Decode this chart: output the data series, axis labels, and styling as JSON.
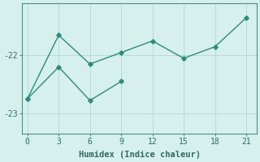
{
  "line1_x": [
    0,
    3,
    6,
    9,
    12,
    15,
    18,
    21
  ],
  "line1_y": [
    -22.75,
    -21.65,
    -22.15,
    -21.95,
    -21.75,
    -22.05,
    -21.85,
    -21.35
  ],
  "line2_x": [
    0,
    3,
    6,
    9
  ],
  "line2_y": [
    -22.75,
    -22.2,
    -22.78,
    -22.45
  ],
  "line_color": "#2e8b7a",
  "bg_color": "#d6f0ee",
  "grid_color": "#b8dbd7",
  "xlabel": "Humidex (Indice chaleur)",
  "xlim": [
    -0.5,
    22
  ],
  "ylim": [
    -23.35,
    -21.1
  ],
  "xticks": [
    0,
    3,
    6,
    9,
    12,
    15,
    18,
    21
  ],
  "yticks": [
    -23,
    -22
  ],
  "ytick_labels": [
    "-23",
    "-22"
  ],
  "marker": "D",
  "markersize": 2.8,
  "linewidth": 1.0,
  "tick_fontsize": 7,
  "xlabel_fontsize": 7.5
}
